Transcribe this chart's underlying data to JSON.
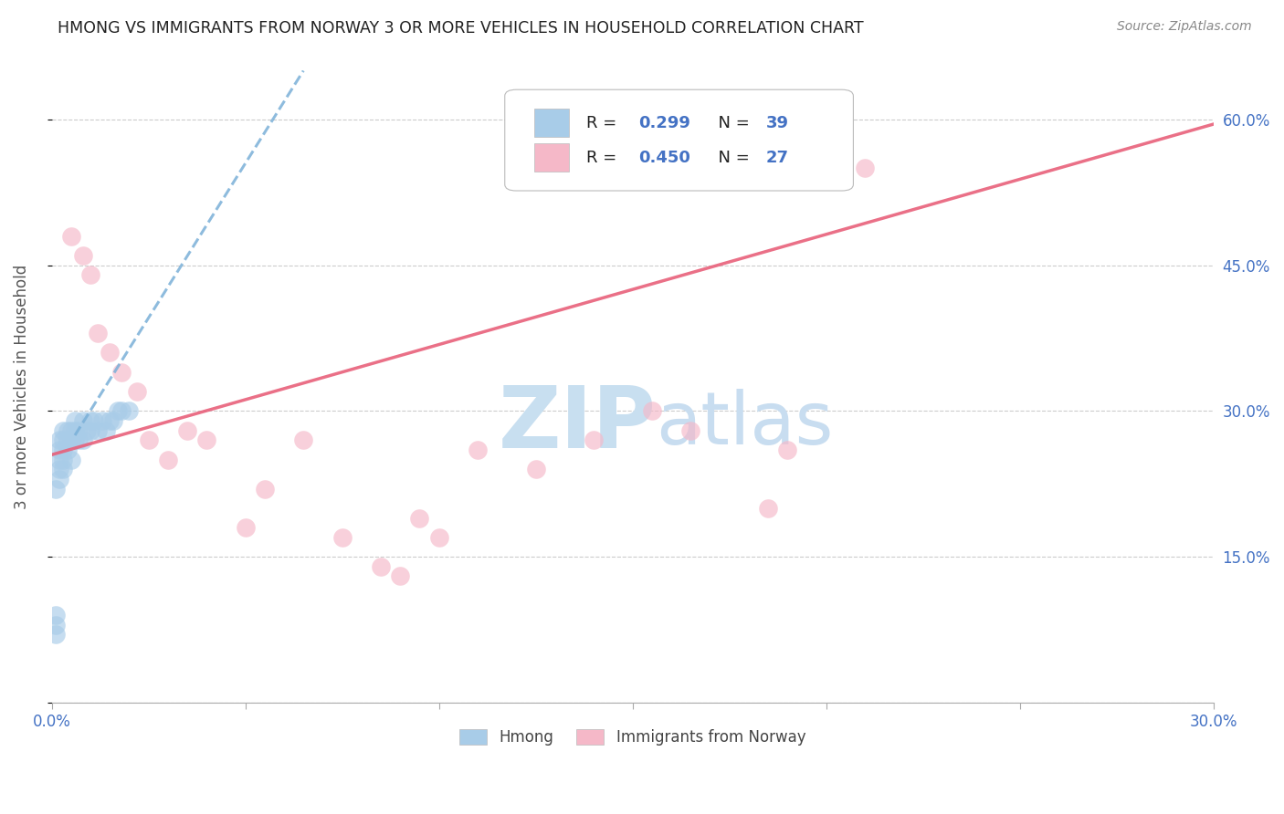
{
  "title": "HMONG VS IMMIGRANTS FROM NORWAY 3 OR MORE VEHICLES IN HOUSEHOLD CORRELATION CHART",
  "source": "Source: ZipAtlas.com",
  "ylabel": "3 or more Vehicles in Household",
  "xmin": 0.0,
  "xmax": 0.3,
  "ymin": 0.0,
  "ymax": 0.65,
  "x_ticks": [
    0.0,
    0.05,
    0.1,
    0.15,
    0.2,
    0.25,
    0.3
  ],
  "x_tick_labels": [
    "0.0%",
    "",
    "",
    "",
    "",
    "",
    "30.0%"
  ],
  "y_ticks": [
    0.0,
    0.15,
    0.3,
    0.45,
    0.6
  ],
  "y_tick_labels": [
    "",
    "15.0%",
    "30.0%",
    "45.0%",
    "60.0%"
  ],
  "legend_label1": "Hmong",
  "legend_label2": "Immigrants from Norway",
  "r1": 0.299,
  "n1": 39,
  "r2": 0.45,
  "n2": 27,
  "color_blue": "#a8cce8",
  "color_pink": "#f5b8c8",
  "color_blue_line": "#7ab0d8",
  "color_pink_line": "#e8607a",
  "color_axis_label": "#4472c4",
  "watermark_zip": "#c8dff0",
  "watermark_atlas": "#c8ddf0",
  "hmong_x": [
    0.001,
    0.001,
    0.001,
    0.001,
    0.002,
    0.002,
    0.002,
    0.002,
    0.002,
    0.003,
    0.003,
    0.003,
    0.003,
    0.003,
    0.004,
    0.004,
    0.004,
    0.005,
    0.005,
    0.005,
    0.006,
    0.006,
    0.006,
    0.007,
    0.007,
    0.008,
    0.008,
    0.009,
    0.01,
    0.01,
    0.011,
    0.012,
    0.013,
    0.014,
    0.015,
    0.016,
    0.017,
    0.018,
    0.02
  ],
  "hmong_y": [
    0.07,
    0.09,
    0.22,
    0.08,
    0.26,
    0.24,
    0.27,
    0.25,
    0.23,
    0.26,
    0.27,
    0.25,
    0.28,
    0.24,
    0.27,
    0.28,
    0.26,
    0.27,
    0.25,
    0.28,
    0.28,
    0.27,
    0.29,
    0.27,
    0.28,
    0.27,
    0.29,
    0.28,
    0.28,
    0.29,
    0.29,
    0.28,
    0.29,
    0.28,
    0.29,
    0.29,
    0.3,
    0.3,
    0.3
  ],
  "norway_x": [
    0.005,
    0.008,
    0.01,
    0.012,
    0.015,
    0.018,
    0.022,
    0.025,
    0.03,
    0.035,
    0.04,
    0.05,
    0.055,
    0.065,
    0.075,
    0.085,
    0.09,
    0.095,
    0.1,
    0.11,
    0.125,
    0.14,
    0.155,
    0.165,
    0.185,
    0.19,
    0.21
  ],
  "norway_y": [
    0.48,
    0.46,
    0.44,
    0.38,
    0.36,
    0.34,
    0.32,
    0.27,
    0.25,
    0.28,
    0.27,
    0.18,
    0.22,
    0.27,
    0.17,
    0.14,
    0.13,
    0.19,
    0.17,
    0.26,
    0.24,
    0.27,
    0.3,
    0.28,
    0.2,
    0.26,
    0.55
  ],
  "blue_line_x": [
    0.006,
    0.065
  ],
  "blue_line_y": [
    0.275,
    0.65
  ],
  "pink_line_x": [
    0.0,
    0.3
  ],
  "pink_line_y": [
    0.255,
    0.595
  ]
}
